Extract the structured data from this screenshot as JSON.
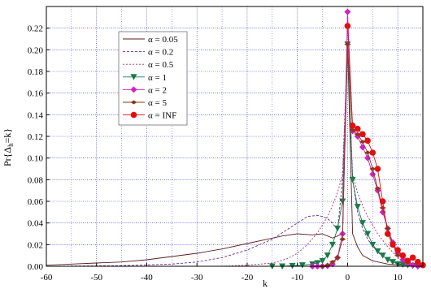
{
  "chart_data": {
    "type": "line",
    "xlabel": "k",
    "ylabel": "Pr{Δ",
    "ylabel_sub": "h",
    "ylabel_tail": "=k}",
    "xlim": [
      -60,
      15
    ],
    "ylim": [
      0,
      0.24
    ],
    "x_ticks": [
      -60,
      -50,
      -40,
      -30,
      -20,
      -10,
      0,
      10
    ],
    "x_tick_labels": [
      "-60",
      "-50",
      "-40",
      "-30",
      "-20",
      "-10",
      "0",
      "10"
    ],
    "y_ticks": [
      0.0,
      0.02,
      0.04,
      0.06,
      0.08,
      0.1,
      0.12,
      0.14,
      0.16,
      0.18,
      0.2,
      0.22
    ],
    "y_tick_labels": [
      "0.00",
      "0.02",
      "0.04",
      "0.06",
      "0.08",
      "0.10",
      "0.12",
      "0.14",
      "0.16",
      "0.18",
      "0.20",
      "0.22"
    ],
    "grid": true,
    "legend_position": "top-left",
    "series": [
      {
        "name": "α = 0.05",
        "color": "#5a1e1e",
        "dash": "",
        "marker": "none",
        "x": [
          -60,
          -55,
          -50,
          -45,
          -40,
          -35,
          -30,
          -25,
          -20,
          -16,
          -13,
          -10,
          -7,
          -5,
          -3,
          -2,
          -1,
          0,
          1,
          2,
          3,
          5,
          8,
          11,
          15
        ],
        "y": [
          0.001,
          0.002,
          0.003,
          0.004,
          0.006,
          0.009,
          0.012,
          0.016,
          0.021,
          0.025,
          0.028,
          0.03,
          0.029,
          0.03,
          0.026,
          0.028,
          0.03,
          0.205,
          0.03,
          0.018,
          0.01,
          0.005,
          0.002,
          0.001,
          0.0005
        ]
      },
      {
        "name": "α = 0.2",
        "color": "#6a2a8a",
        "dash": "3,2",
        "marker": "none",
        "x": [
          -60,
          -45,
          -35,
          -30,
          -25,
          -20,
          -15,
          -12,
          -10,
          -8,
          -6,
          -5,
          -4,
          -3,
          -2,
          -1,
          0,
          1,
          2,
          3,
          4,
          6,
          8,
          10,
          13,
          15
        ],
        "y": [
          0.0,
          0.0005,
          0.002,
          0.004,
          0.008,
          0.015,
          0.025,
          0.034,
          0.04,
          0.046,
          0.047,
          0.046,
          0.044,
          0.04,
          0.033,
          0.08,
          0.2,
          0.08,
          0.05,
          0.035,
          0.025,
          0.013,
          0.006,
          0.002,
          0.001,
          0.0
        ]
      },
      {
        "name": "α = 0.5",
        "color": "#a0306a",
        "dash": "2,2",
        "marker": "none",
        "x": [
          -60,
          -25,
          -20,
          -15,
          -12,
          -10,
          -8,
          -6,
          -5,
          -4,
          -3,
          -2,
          -1,
          0,
          1,
          2,
          3,
          4,
          5,
          6,
          8,
          10,
          12,
          15
        ],
        "y": [
          0.0,
          0.0,
          0.001,
          0.003,
          0.007,
          0.012,
          0.02,
          0.031,
          0.038,
          0.046,
          0.056,
          0.068,
          0.085,
          0.205,
          0.085,
          0.068,
          0.056,
          0.046,
          0.038,
          0.03,
          0.018,
          0.008,
          0.003,
          0.0
        ]
      },
      {
        "name": "α = 1",
        "color": "#1a7a4a",
        "dash": "",
        "marker": "triangle-down",
        "x": [
          -15,
          -13,
          -11,
          -9,
          -7,
          -6,
          -5,
          -4,
          -3,
          -2,
          -1,
          0,
          1,
          2,
          3,
          4,
          5,
          6,
          7,
          8,
          9,
          10,
          11,
          12,
          13,
          14
        ],
        "y": [
          0.0,
          0.0,
          0.0005,
          0.001,
          0.002,
          0.003,
          0.005,
          0.01,
          0.02,
          0.035,
          0.06,
          0.205,
          0.08,
          0.055,
          0.04,
          0.03,
          0.02,
          0.014,
          0.01,
          0.006,
          0.004,
          0.002,
          0.0015,
          0.001,
          0.0005,
          0.0
        ]
      },
      {
        "name": "α = 2",
        "color": "#d020c0",
        "dash": "",
        "marker": "diamond",
        "x": [
          -7,
          -6,
          -5,
          -4,
          -3,
          -2,
          -1,
          0,
          1,
          2,
          3,
          4,
          5,
          6,
          7,
          8,
          9,
          10,
          11,
          12,
          13,
          14
        ],
        "y": [
          0.0,
          0.0,
          0.0,
          0.0005,
          0.002,
          0.008,
          0.03,
          0.235,
          0.125,
          0.12,
          0.11,
          0.1,
          0.085,
          0.07,
          0.05,
          0.035,
          0.022,
          0.012,
          0.006,
          0.003,
          0.001,
          0.0
        ]
      },
      {
        "name": "α = 5",
        "color": "#8a3a1a",
        "dash": "",
        "marker": "diamond-small",
        "x": [
          -5,
          -4,
          -3,
          -2,
          -1,
          0,
          1,
          2,
          3,
          4,
          5,
          6,
          7,
          8,
          9,
          10
        ],
        "y": [
          0.0,
          0.001,
          0.004,
          0.008,
          0.025,
          0.205,
          0.126,
          0.122,
          0.115,
          0.105,
          0.09,
          0.072,
          0.054,
          0.035,
          0.02,
          0.01
        ]
      },
      {
        "name": "α = INF",
        "color": "#e01010",
        "dash": "",
        "marker": "circle",
        "x": [
          0,
          1,
          2,
          3,
          4,
          5,
          6,
          7,
          8,
          9,
          10,
          11,
          12,
          13,
          14,
          15
        ],
        "y": [
          0.222,
          0.13,
          0.127,
          0.122,
          0.116,
          0.105,
          0.09,
          0.06,
          0.03,
          0.02,
          0.015,
          0.01,
          0.005,
          0.008,
          0.004,
          0.001
        ]
      }
    ]
  }
}
